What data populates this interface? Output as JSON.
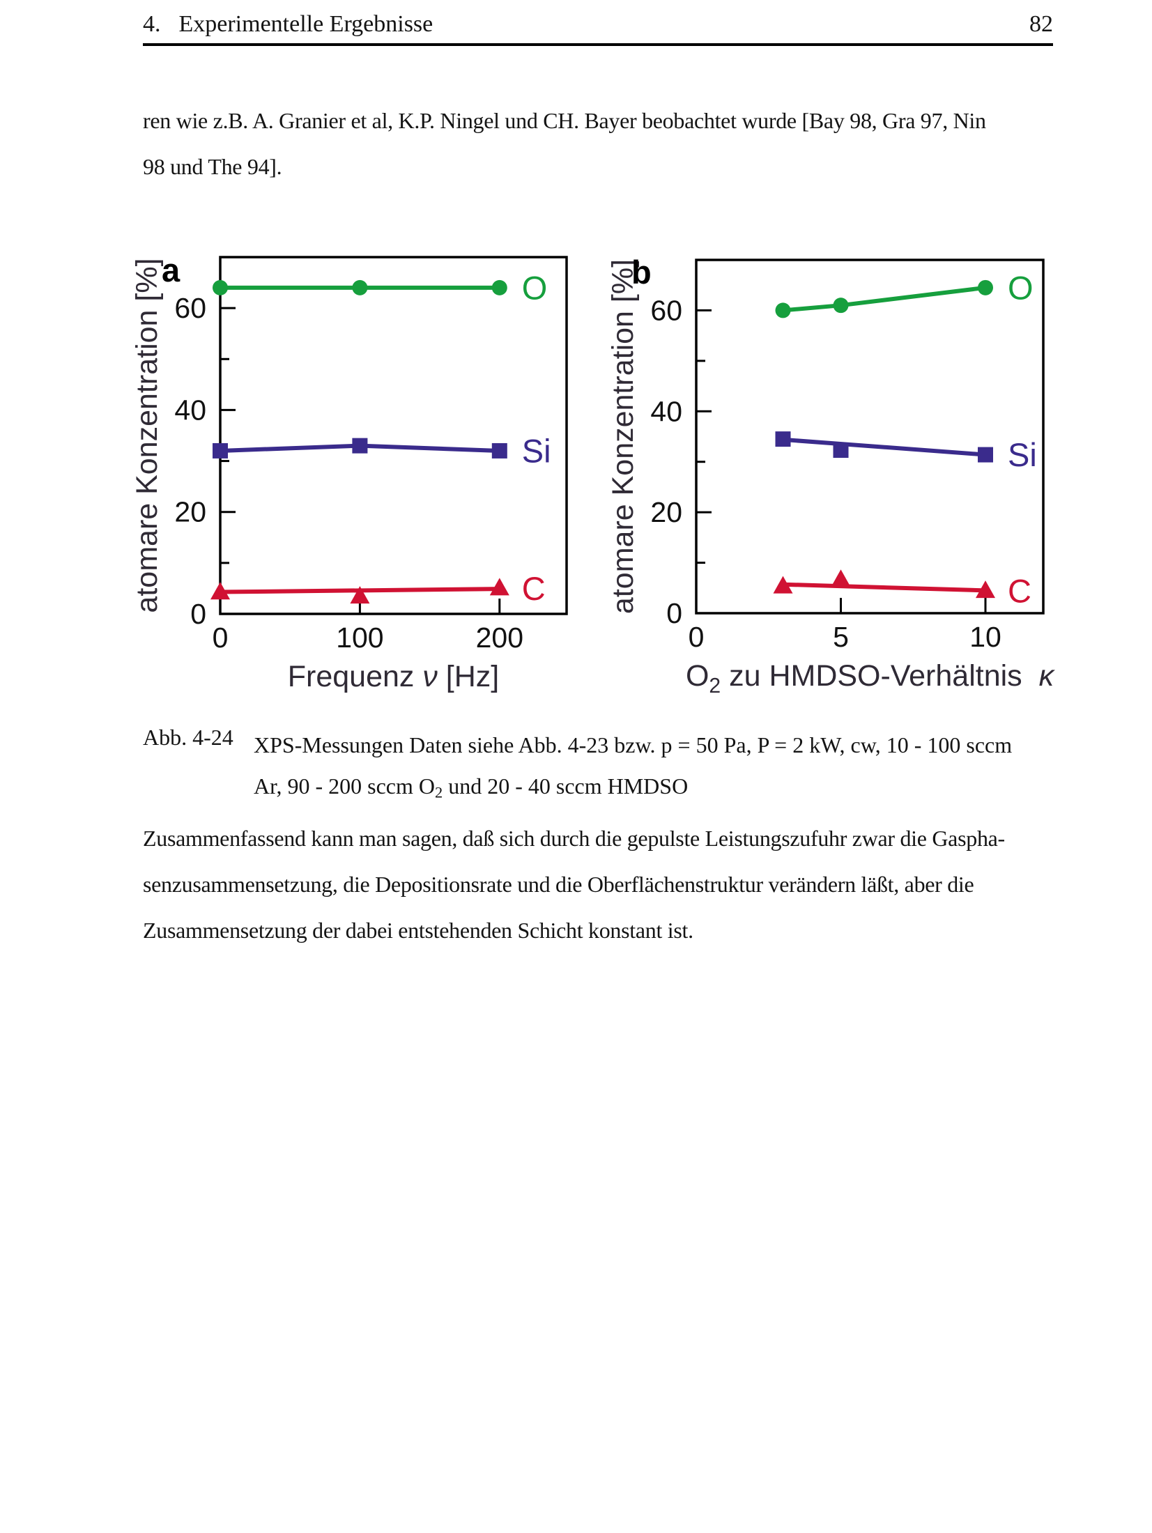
{
  "page": {
    "header": {
      "chapter_num": "4.",
      "chapter_title": "Experimentelle Ergebnisse",
      "page_number": "82"
    },
    "paragraph1_lines": [
      "ren wie z.B. A. Granier et al, K.P. Ningel und CH. Bayer beobachtet wurde [Bay 98, Gra 97, Nin",
      "98 und The 94]."
    ],
    "caption": {
      "label": "Abb. 4-24",
      "line1": "XPS-Messungen Daten siehe Abb. 4-23 bzw. p = 50 Pa, P = 2 kW, cw, 10 - 100 sccm",
      "line2_parts": [
        {
          "t": "Ar, 90 - 200 sccm O"
        },
        {
          "t": "2",
          "sub": true
        },
        {
          "t": " und 20 - 40 sccm HMDSO"
        }
      ]
    },
    "paragraph2_lines": [
      "Zusammenfassend kann man sagen, daß sich durch die gepulste Leistungszufuhr zwar die Gaspha-",
      "senzusammensetzung, die Depositionsrate und die Oberflächenstruktur verändern läßt, aber die",
      "Zusammensetzung der dabei entstehenden Schicht konstant ist."
    ]
  },
  "colors": {
    "oxygen": "#169f3d",
    "silicon": "#3a2b8c",
    "carbon": "#d01233",
    "axis": "#000000",
    "axis_title_text": "#2f2a35",
    "tick_text": "#111111"
  },
  "chart_data": [
    {
      "id": "a",
      "type": "line",
      "panel_label": "a",
      "ylabel": "atomare Konzentration [%]",
      "xlabel_parts": [
        {
          "t": "Frequenz "
        },
        {
          "t": "ν",
          "italic": true
        },
        {
          "t": " [Hz]"
        }
      ],
      "xlim": [
        0,
        248
      ],
      "ylim": [
        0,
        70
      ],
      "x_ticks": [
        {
          "v": 0,
          "label": "0"
        },
        {
          "v": 100,
          "label": "100"
        },
        {
          "v": 200,
          "label": "200"
        }
      ],
      "y_ticks": [
        {
          "v": 0,
          "label": "0"
        },
        {
          "v": 20,
          "label": "20"
        },
        {
          "v": 40,
          "label": "40"
        },
        {
          "v": 60,
          "label": "60"
        }
      ],
      "y_minor_ticks": [
        10,
        30,
        50
      ],
      "legend_position": "right-of-last-point",
      "grid": false,
      "series": [
        {
          "name": "O",
          "marker": "circle",
          "color_key": "oxygen",
          "x": [
            0,
            100,
            200
          ],
          "y": [
            64,
            64,
            64
          ],
          "line_x": [
            0,
            200
          ],
          "line_y": [
            64,
            64
          ]
        },
        {
          "name": "Si",
          "marker": "square",
          "color_key": "silicon",
          "x": [
            0,
            100,
            200
          ],
          "y": [
            32,
            33,
            32
          ]
        },
        {
          "name": "C",
          "marker": "triangle",
          "color_key": "carbon",
          "x": [
            0,
            100,
            200
          ],
          "y": [
            4.2,
            3.4,
            5.0
          ],
          "line_x": [
            0,
            200
          ],
          "line_y": [
            4.3,
            4.9
          ]
        }
      ]
    },
    {
      "id": "b",
      "type": "line",
      "panel_label": "b",
      "ylabel": "atomare Konzentration [%]",
      "xlabel_parts": [
        {
          "t": "O"
        },
        {
          "t": "2",
          "sub": true
        },
        {
          "t": " zu HMDSO-Verhältnis  "
        },
        {
          "t": "κ",
          "italic": true
        }
      ],
      "xlim": [
        0,
        12
      ],
      "ylim": [
        0,
        70
      ],
      "x_ticks": [
        {
          "v": 0,
          "label": "0"
        },
        {
          "v": 5,
          "label": "5"
        },
        {
          "v": 10,
          "label": "10"
        }
      ],
      "y_ticks": [
        {
          "v": 0,
          "label": "0"
        },
        {
          "v": 20,
          "label": "20"
        },
        {
          "v": 40,
          "label": "40"
        },
        {
          "v": 60,
          "label": "60"
        }
      ],
      "y_minor_ticks": [
        10,
        30,
        50
      ],
      "legend_position": "right-of-last-point",
      "grid": false,
      "series": [
        {
          "name": "O",
          "marker": "circle",
          "color_key": "oxygen",
          "x": [
            3,
            5,
            10
          ],
          "y": [
            60,
            61,
            64.5
          ]
        },
        {
          "name": "Si",
          "marker": "square",
          "color_key": "silicon",
          "x": [
            3,
            5,
            10
          ],
          "y": [
            34.5,
            32.3,
            31.4
          ],
          "line_x": [
            3,
            10
          ],
          "line_y": [
            34.4,
            31.4
          ]
        },
        {
          "name": "C",
          "marker": "triangle",
          "color_key": "carbon",
          "x": [
            3,
            5,
            10
          ],
          "y": [
            5.3,
            6.6,
            4.4
          ],
          "line_x": [
            3,
            10
          ],
          "line_y": [
            5.7,
            4.5
          ]
        }
      ]
    }
  ]
}
